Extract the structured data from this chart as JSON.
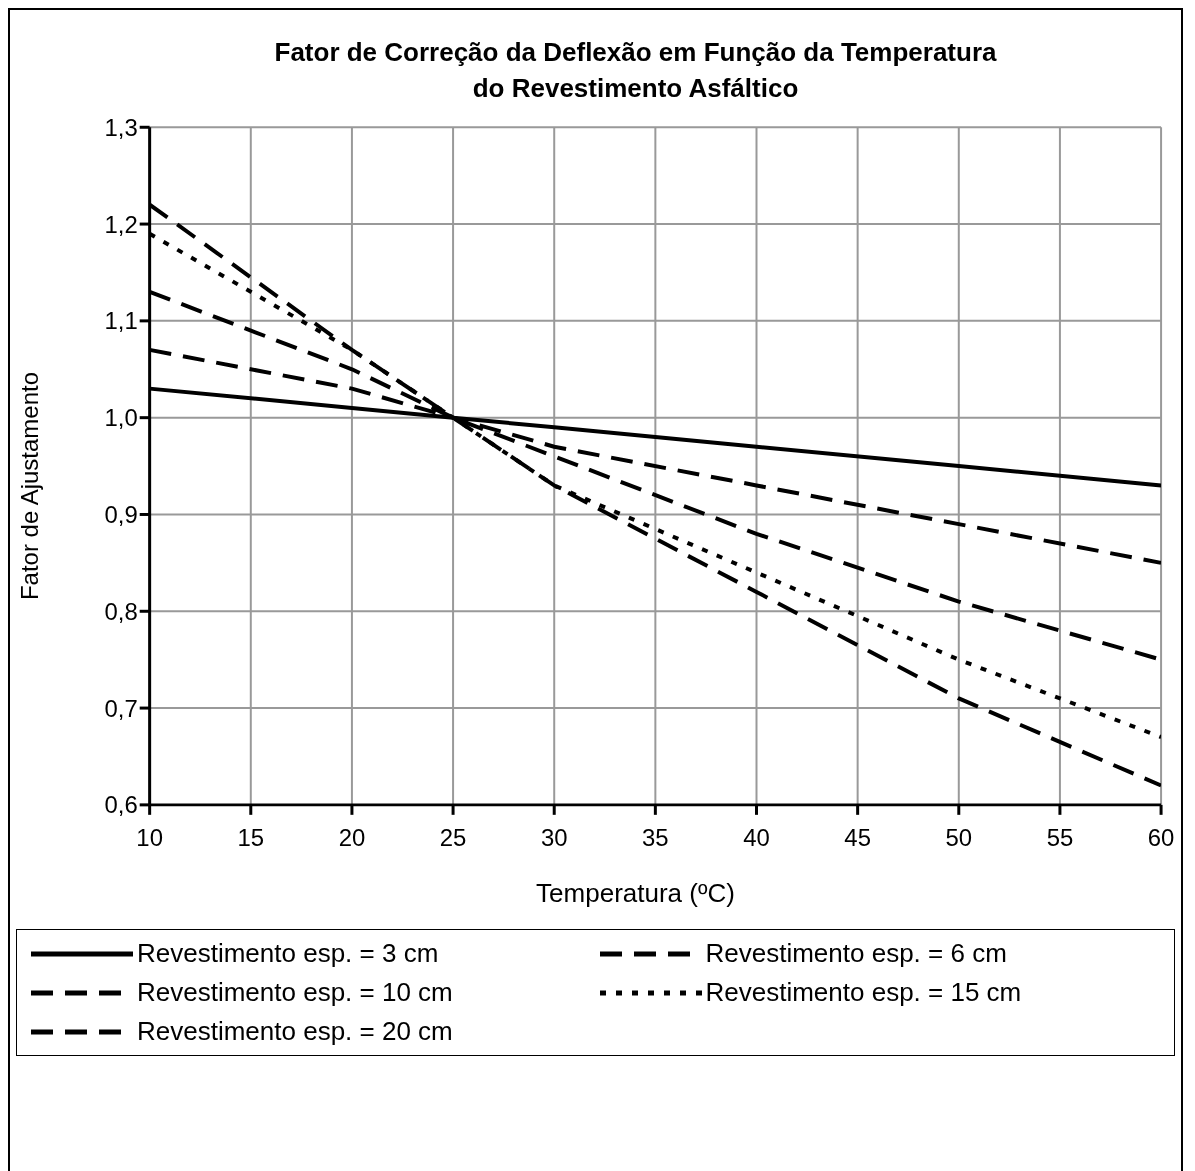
{
  "chart_data": {
    "type": "line",
    "title": "Fator de Correção da Deflexão em Função da Temperatura\ndo Revestimento Asfáltico",
    "xlabel": "Temperatura (ºC)",
    "ylabel": "Fator de Ajustamento",
    "x": [
      10,
      20,
      25,
      30,
      40,
      50,
      60
    ],
    "series": [
      {
        "name": "Revestimento esp. = 3 cm",
        "color": "#000000",
        "line_style": "solid",
        "values": [
          1.03,
          1.01,
          1.0,
          0.99,
          0.97,
          0.95,
          0.93
        ]
      },
      {
        "name": "Revestimento esp. = 6 cm",
        "color": "#000000",
        "line_style": "dashed",
        "values": [
          1.07,
          1.03,
          1.0,
          0.97,
          0.93,
          0.89,
          0.85
        ]
      },
      {
        "name": "Revestimento esp. = 10 cm",
        "color": "#000000",
        "line_style": "dashed",
        "values": [
          1.13,
          1.05,
          1.0,
          0.96,
          0.88,
          0.81,
          0.75
        ]
      },
      {
        "name": "Revestimento esp. = 15 cm",
        "color": "#000000",
        "line_style": "dotted",
        "values": [
          1.19,
          1.07,
          1.0,
          0.93,
          0.84,
          0.75,
          0.67
        ]
      },
      {
        "name": "Revestimento esp. = 20 cm",
        "color": "#000000",
        "line_style": "dashed",
        "values": [
          1.22,
          1.07,
          1.0,
          0.93,
          0.82,
          0.71,
          0.62
        ]
      }
    ],
    "xlim": [
      10,
      60
    ],
    "xticks": [
      10,
      15,
      20,
      25,
      30,
      35,
      40,
      45,
      50,
      55,
      60
    ],
    "ylim": [
      0.6,
      1.3
    ],
    "yticks": [
      {
        "value": 0.6,
        "label": "0,6"
      },
      {
        "value": 0.7,
        "label": "0,7"
      },
      {
        "value": 0.8,
        "label": "0,8"
      },
      {
        "value": 0.9,
        "label": "0,9"
      },
      {
        "value": 1.0,
        "label": "1,0"
      },
      {
        "value": 1.1,
        "label": "1,1"
      },
      {
        "value": 1.2,
        "label": "1,2"
      },
      {
        "value": 1.3,
        "label": "1,3"
      }
    ],
    "grid": true,
    "legend": "bottom",
    "marker": "none"
  }
}
